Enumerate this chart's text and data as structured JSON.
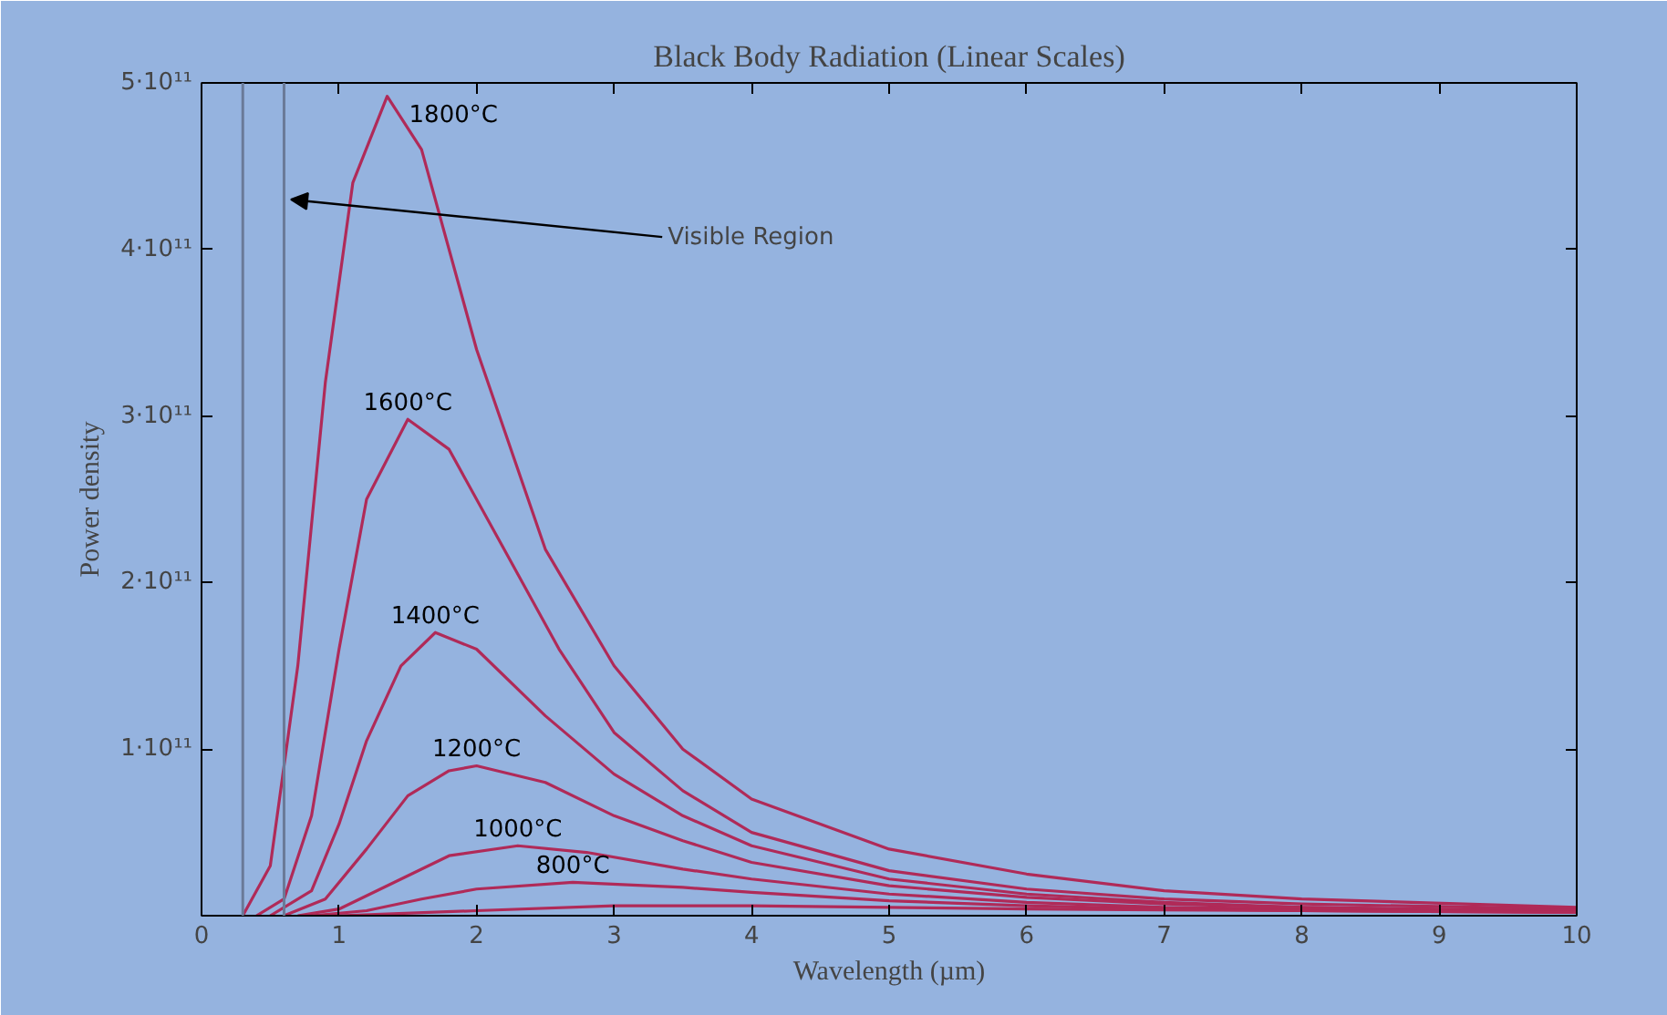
{
  "chart_data": {
    "type": "line",
    "title": "Black Body Radiation (Linear Scales)",
    "xlabel": "Wavelength (µm)",
    "ylabel": "Power density",
    "xlim": [
      0,
      10
    ],
    "ylim": [
      0,
      500000000000.0
    ],
    "xticks": [
      0,
      1,
      2,
      3,
      4,
      5,
      6,
      7,
      8,
      9,
      10
    ],
    "yticks": [
      {
        "value": 100000000000.0,
        "label": "1·10¹¹"
      },
      {
        "value": 200000000000.0,
        "label": "2·10¹¹"
      },
      {
        "value": 300000000000.0,
        "label": "3·10¹¹"
      },
      {
        "value": 400000000000.0,
        "label": "4·10¹¹"
      },
      {
        "value": 500000000000.0,
        "label": "5·10¹¹"
      }
    ],
    "grid": false,
    "legend": false,
    "marker": "none",
    "line_style": "solid",
    "ref_lines": [
      {
        "axis": "x",
        "value": 0.3,
        "label": null,
        "color": "#6a7a98"
      },
      {
        "axis": "x",
        "value": 0.6,
        "label": null,
        "color": "#6a7a98"
      }
    ],
    "annotations": [
      {
        "text": "Visible Region",
        "x": 0.65,
        "y": 430000000000.0
      }
    ],
    "series": [
      {
        "name": "1800°C",
        "color": "#b02a58",
        "x": [
          0.3,
          0.5,
          0.7,
          0.9,
          1.1,
          1.35,
          1.6,
          2.0,
          2.5,
          3,
          3.5,
          4,
          5,
          6,
          7,
          8,
          10
        ],
        "values": [
          0,
          30000000000.0,
          150000000000.0,
          320000000000.0,
          440000000000.0,
          492000000000.0,
          460000000000.0,
          340000000000.0,
          220000000000.0,
          150000000000.0,
          100000000000.0,
          70000000000.0,
          40000000000.0,
          25000000000.0,
          15000000000.0,
          10000000000.0,
          5000000000.0
        ]
      },
      {
        "name": "1600°C",
        "color": "#b02a58",
        "x": [
          0.4,
          0.6,
          0.8,
          1.0,
          1.2,
          1.5,
          1.8,
          2.2,
          2.6,
          3,
          3.5,
          4,
          5,
          6,
          7,
          8,
          10
        ],
        "values": [
          0,
          10000000000.0,
          60000000000.0,
          160000000000.0,
          250000000000.0,
          298000000000.0,
          280000000000.0,
          220000000000.0,
          160000000000.0,
          110000000000.0,
          75000000000.0,
          50000000000.0,
          27000000000.0,
          16000000000.0,
          10000000000.0,
          7000000000.0,
          4000000000.0
        ]
      },
      {
        "name": "1400°C",
        "color": "#b02a58",
        "x": [
          0.5,
          0.8,
          1.0,
          1.2,
          1.45,
          1.7,
          2.0,
          2.5,
          3,
          3.5,
          4,
          5,
          6,
          7,
          8,
          10
        ],
        "values": [
          0,
          15000000000.0,
          55000000000.0,
          105000000000.0,
          150000000000.0,
          170000000000.0,
          160000000000.0,
          120000000000.0,
          85000000000.0,
          60000000000.0,
          42000000000.0,
          22000000000.0,
          13000000000.0,
          8000000000.0,
          5000000000.0,
          3000000000.0
        ]
      },
      {
        "name": "1200°C",
        "color": "#b02a58",
        "x": [
          0.6,
          0.9,
          1.2,
          1.5,
          1.8,
          2.0,
          2.5,
          3,
          3.5,
          4,
          5,
          6,
          7,
          8,
          10
        ],
        "values": [
          0,
          10000000000.0,
          40000000000.0,
          72000000000.0,
          87000000000.0,
          90000000000.0,
          80000000000.0,
          60000000000.0,
          45000000000.0,
          32000000000.0,
          18000000000.0,
          11000000000.0,
          7000000000.0,
          5000000000.0,
          2000000000.0
        ]
      },
      {
        "name": "1000°C",
        "color": "#b02a58",
        "x": [
          0.7,
          1.0,
          1.4,
          1.8,
          2.3,
          2.8,
          3.5,
          4,
          5,
          6,
          7,
          8,
          10
        ],
        "values": [
          0,
          4000000000.0,
          20000000000.0,
          36000000000.0,
          42000000000.0,
          38000000000.0,
          28000000000.0,
          22000000000.0,
          13000000000.0,
          8000000000.0,
          5000000000.0,
          4000000000.0,
          2000000000.0
        ]
      },
      {
        "name": "800°C",
        "color": "#b02a58",
        "x": [
          0.8,
          1.2,
          1.6,
          2.0,
          2.7,
          3.5,
          4,
          5,
          6,
          7,
          8,
          10
        ],
        "values": [
          0,
          3000000000.0,
          10000000000.0,
          16000000000.0,
          20000000000.0,
          17000000000.0,
          14000000000.0,
          9000000000.0,
          6000000000.0,
          4000000000.0,
          3000000000.0,
          2000000000.0
        ]
      },
      {
        "color": "#b02a58",
        "x": [
          1,
          2,
          3,
          4,
          5,
          6,
          8,
          10
        ],
        "values": [
          0,
          3000000000.0,
          6000000000.0,
          6000000000.0,
          5000000000.0,
          4000000000.0,
          3000000000.0,
          2000000000.0
        ]
      }
    ]
  }
}
